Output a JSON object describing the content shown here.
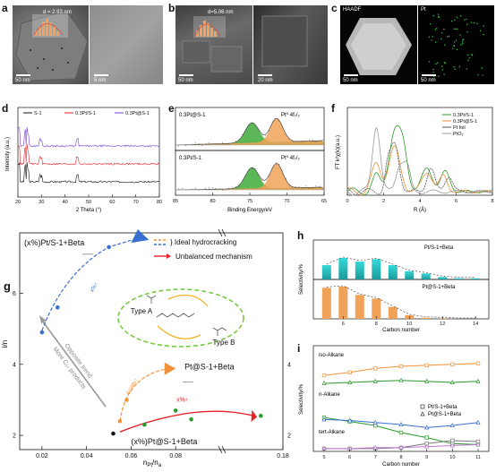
{
  "panels": {
    "a": {
      "label": "a",
      "inset_text": "d = 2.93 nm",
      "scalebar_left": "50 nm",
      "scalebar_right": "5 nm"
    },
    "b": {
      "label": "b",
      "inset_text": "d=5.06 nm",
      "scalebar_left": "50 nm",
      "scalebar_right": "20 nm"
    },
    "c": {
      "label": "c",
      "tag_left": "HAADF",
      "tag_right": "Pt",
      "scalebar_left": "50 nm",
      "scalebar_right": "50 nm"
    },
    "d": {
      "label": "d"
    },
    "e": {
      "label": "e"
    },
    "f": {
      "label": "f"
    },
    "g": {
      "label": "g"
    },
    "h": {
      "label": "h"
    },
    "i": {
      "label": "i"
    }
  },
  "chart_data": [
    {
      "id": "d",
      "type": "line",
      "xlabel": "2 Theta (°)",
      "ylabel": "Intensity (a.u.)",
      "xlim": [
        20,
        80
      ],
      "xticks": [
        "20",
        "30",
        "40",
        "50",
        "60",
        "70",
        "80"
      ],
      "series": [
        {
          "name": "S-1",
          "color": "#111111"
        },
        {
          "name": "0.3Pt/S-1",
          "color": "#e8222a"
        },
        {
          "name": "0.3Pt@S-1",
          "color": "#7a3fd6"
        }
      ]
    },
    {
      "id": "e",
      "type": "line",
      "xlabel": "Binding Energy/eV",
      "xlim": [
        85,
        65
      ],
      "xticks": [
        "85",
        "80",
        "75",
        "70",
        "65"
      ],
      "subplots": [
        {
          "sample": "0.3Pt@S-1",
          "peak_label": "Pt⁰ 4f₇/₂"
        },
        {
          "sample": "0.3Pt/S-1",
          "peak_label": "Pt⁰ 4f₇/₂"
        }
      ],
      "fit_colors": {
        "f5_2": "#3faa3a",
        "f7_2": "#f0a258"
      }
    },
    {
      "id": "f",
      "type": "line",
      "xlabel": "R (Å)",
      "ylabel": "FT k²χ(k)(a.u.)",
      "xlim": [
        0,
        8
      ],
      "xticks": [
        "0",
        "2",
        "4",
        "6",
        "8"
      ],
      "series": [
        {
          "name": "0.3Pt/S-1",
          "color": "#2f9a2f"
        },
        {
          "name": "0.3Pt@S-1",
          "color": "#f0923a"
        },
        {
          "name": "Pt foil",
          "color": "#555555"
        },
        {
          "name": "PtO₂",
          "color": "#999999"
        }
      ]
    },
    {
      "id": "g",
      "type": "scatter",
      "xlabel": "n_Pt/n_a",
      "ylabel": "i/n",
      "xlim": [
        0.01,
        0.18
      ],
      "ylim": [
        1.6,
        7.7
      ],
      "xticks": [
        "0.02",
        "0.04",
        "0.06",
        "0.08",
        "0.18"
      ],
      "yticks": [
        "2",
        "4",
        "6"
      ],
      "right_yticks": [
        "2",
        "4"
      ],
      "legend": [
        "} Ideal hydrocracking",
        "Unbalanced mechanism"
      ],
      "annotations": {
        "series_top": "(x%)Pt/S-1+Beta",
        "series_mid": "Pt@S-1+Beta",
        "series_bottom": "(x%)Pt@S-1+Beta",
        "x_increase_top": "x%↑",
        "x_increase_mid": "Acidity↑",
        "x_increase_bottom": "x%↑",
        "opposite_trend": "Opposite trend",
        "more_products": "More C₁₇ products",
        "type_a": "Type A",
        "type_b": "Type B"
      },
      "series": [
        {
          "name": "(x%)Pt/S-1+Beta",
          "color": "#3a6fd0",
          "x": [
            0.02,
            0.027,
            0.05
          ],
          "y": [
            4.9,
            5.6,
            7.3
          ]
        },
        {
          "name": "Pt@S-1+Beta",
          "color": "#f0923a",
          "x": [
            0.055,
            0.058,
            0.077
          ],
          "y": [
            2.4,
            3.0,
            3.85
          ]
        },
        {
          "name": "(x%)Pt@S-1+Beta",
          "color": "#2a9a2a",
          "x": [
            0.052,
            0.066,
            0.08,
            0.087,
            0.15
          ],
          "y": [
            2.05,
            2.3,
            2.7,
            2.45,
            2.55
          ]
        }
      ]
    },
    {
      "id": "h",
      "type": "bar",
      "xlabel": "Carbon number",
      "ylabel": "Selectivity/%",
      "categories": [
        "5",
        "6",
        "7",
        "8",
        "9",
        "10",
        "11",
        "12",
        "13",
        "14"
      ],
      "xticks": [
        "6",
        "8",
        "10",
        "12",
        "14"
      ],
      "series": [
        {
          "name": "Pt/S-1+Beta",
          "color": "#2ac7c7",
          "values": [
            12,
            18,
            15,
            17,
            12,
            7,
            5,
            2,
            1,
            1
          ]
        },
        {
          "name": "Pt@S-1+Beta",
          "color": "#f0a258",
          "values": [
            26,
            27,
            20,
            17,
            10,
            3,
            1,
            0.5,
            0,
            0
          ]
        }
      ]
    },
    {
      "id": "i",
      "type": "line",
      "xlabel": "Carbon number",
      "ylabel": "Selectivity/%",
      "categories": [
        "5",
        "6",
        "7",
        "8",
        "9",
        "10",
        "11"
      ],
      "legend": [
        "Pt/S-1+Beta",
        "Pt@S-1+Beta"
      ],
      "groups": [
        {
          "name": "iso-Alkane",
          "series": [
            {
              "name": "Pt/S-1+Beta",
              "color": "#f0923a",
              "values": [
                74,
                77,
                81,
                83,
                84,
                85,
                86
              ]
            },
            {
              "name": "Pt@S-1+Beta",
              "color": "#2a9a2a",
              "values": [
                66,
                67,
                68,
                69,
                68,
                67,
                68
              ]
            }
          ]
        },
        {
          "name": "n-Alkane",
          "series": [
            {
              "name": "Pt/S-1+Beta",
              "color": "#2a9a2a",
              "values": [
                32,
                28,
                24,
                17,
                12,
                6,
                5
              ]
            },
            {
              "name": "Pt@S-1+Beta",
              "color": "#3a6fd0",
              "values": [
                30,
                29,
                27,
                25,
                22,
                24,
                27
              ]
            }
          ]
        },
        {
          "name": "tert-Alkane",
          "series": [
            {
              "name": "Pt/S-1+Beta",
              "color": "#777777",
              "values": [
                1,
                1,
                1,
                2,
                6,
                9,
                8
              ]
            },
            {
              "name": "Pt@S-1+Beta",
              "color": "#c07acf",
              "values": [
                1,
                1,
                2,
                2,
                3,
                4,
                5
              ]
            }
          ]
        }
      ]
    }
  ]
}
